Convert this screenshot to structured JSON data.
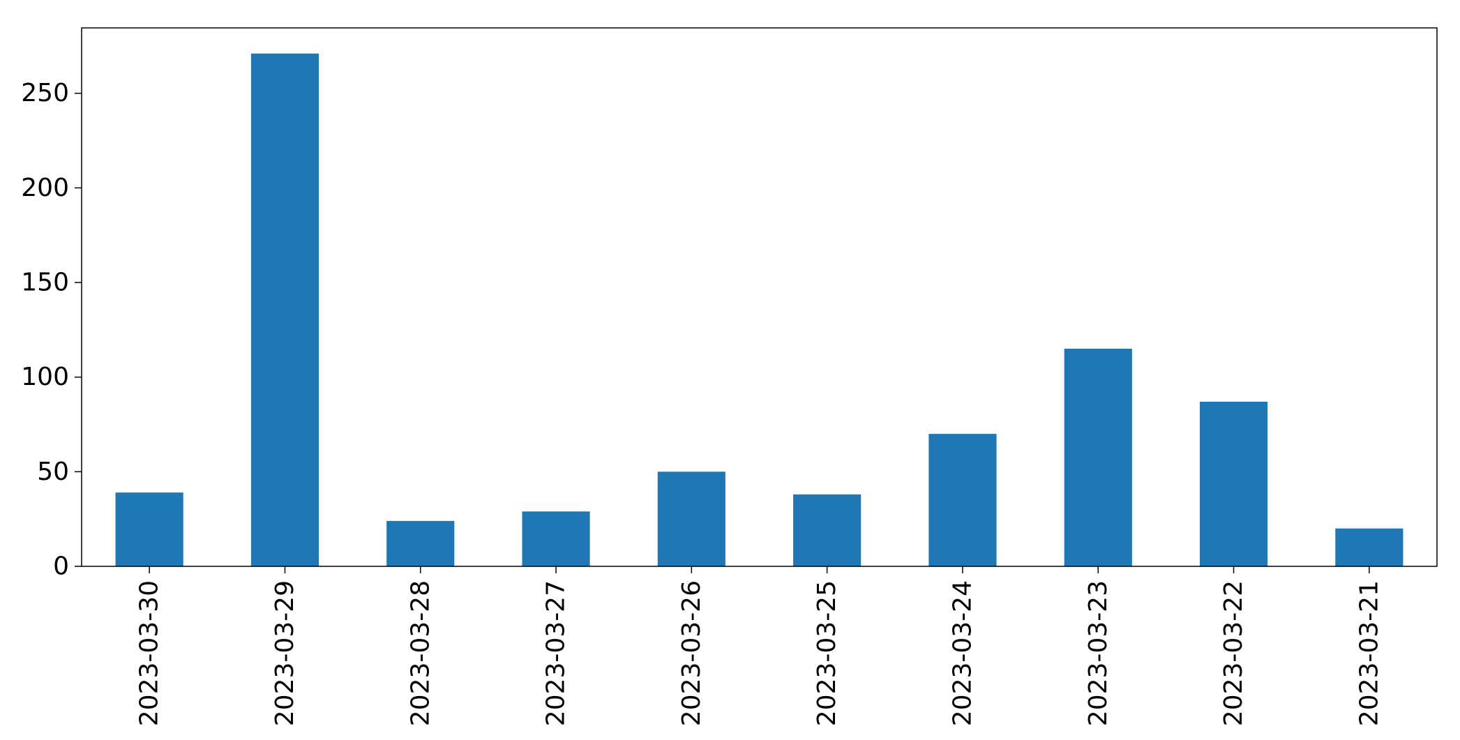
{
  "chart_data": {
    "type": "bar",
    "title": "",
    "xlabel": "",
    "ylabel": "",
    "categories": [
      "2023-03-30",
      "2023-03-29",
      "2023-03-28",
      "2023-03-27",
      "2023-03-26",
      "2023-03-25",
      "2023-03-24",
      "2023-03-23",
      "2023-03-22",
      "2023-03-21"
    ],
    "values": [
      39,
      271,
      24,
      29,
      50,
      38,
      70,
      115,
      87,
      20
    ],
    "ylim": [
      0,
      284.55
    ],
    "yticks": [
      0,
      50,
      100,
      150,
      200,
      250
    ],
    "bar_color": "#1f77b4",
    "grid": false,
    "legend": "none"
  }
}
